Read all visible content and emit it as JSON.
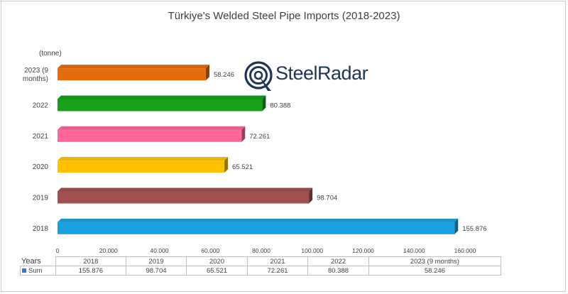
{
  "chart_data": {
    "type": "bar",
    "orientation": "horizontal",
    "title": "Türkiye's Welded Steel Pipe Imports (2018-2023)",
    "unit_label": "(tonne)",
    "categories": [
      "2023 (9 months)",
      "2022",
      "2021",
      "2020",
      "2019",
      "2018"
    ],
    "category_lines": [
      [
        "2023 (9",
        "months)"
      ],
      [
        "2022"
      ],
      [
        "2021"
      ],
      [
        "2020"
      ],
      [
        "2019"
      ],
      [
        "2018"
      ]
    ],
    "values": [
      58246,
      80388,
      72261,
      65521,
      98704,
      155876
    ],
    "value_labels": [
      "58.246",
      "80.388",
      "72.261",
      "65.521",
      "98.704",
      "155.876"
    ],
    "colors": [
      "#e46c0a",
      "#16a01c",
      "#ff6699",
      "#ffc000",
      "#a0504f",
      "#1ba1e2"
    ],
    "xlim": [
      0,
      160000
    ],
    "x_ticks": [
      0,
      20000,
      40000,
      60000,
      80000,
      100000,
      120000,
      140000,
      160000
    ],
    "x_tick_labels": [
      "0",
      "20.000",
      "40.000",
      "60.000",
      "80.000",
      "100.000",
      "120.000",
      "140.000",
      "160.000"
    ],
    "grid": false,
    "style": "3d"
  },
  "logo": {
    "text": "SteelRadar"
  },
  "data_table": {
    "header_label": "Years",
    "years": [
      "2018",
      "2019",
      "2020",
      "2021",
      "2022",
      "2023 (9 months)"
    ],
    "row_label": "Sum",
    "values": [
      "155.876",
      "98.704",
      "65.521",
      "72.261",
      "80.388",
      "58.246"
    ]
  }
}
